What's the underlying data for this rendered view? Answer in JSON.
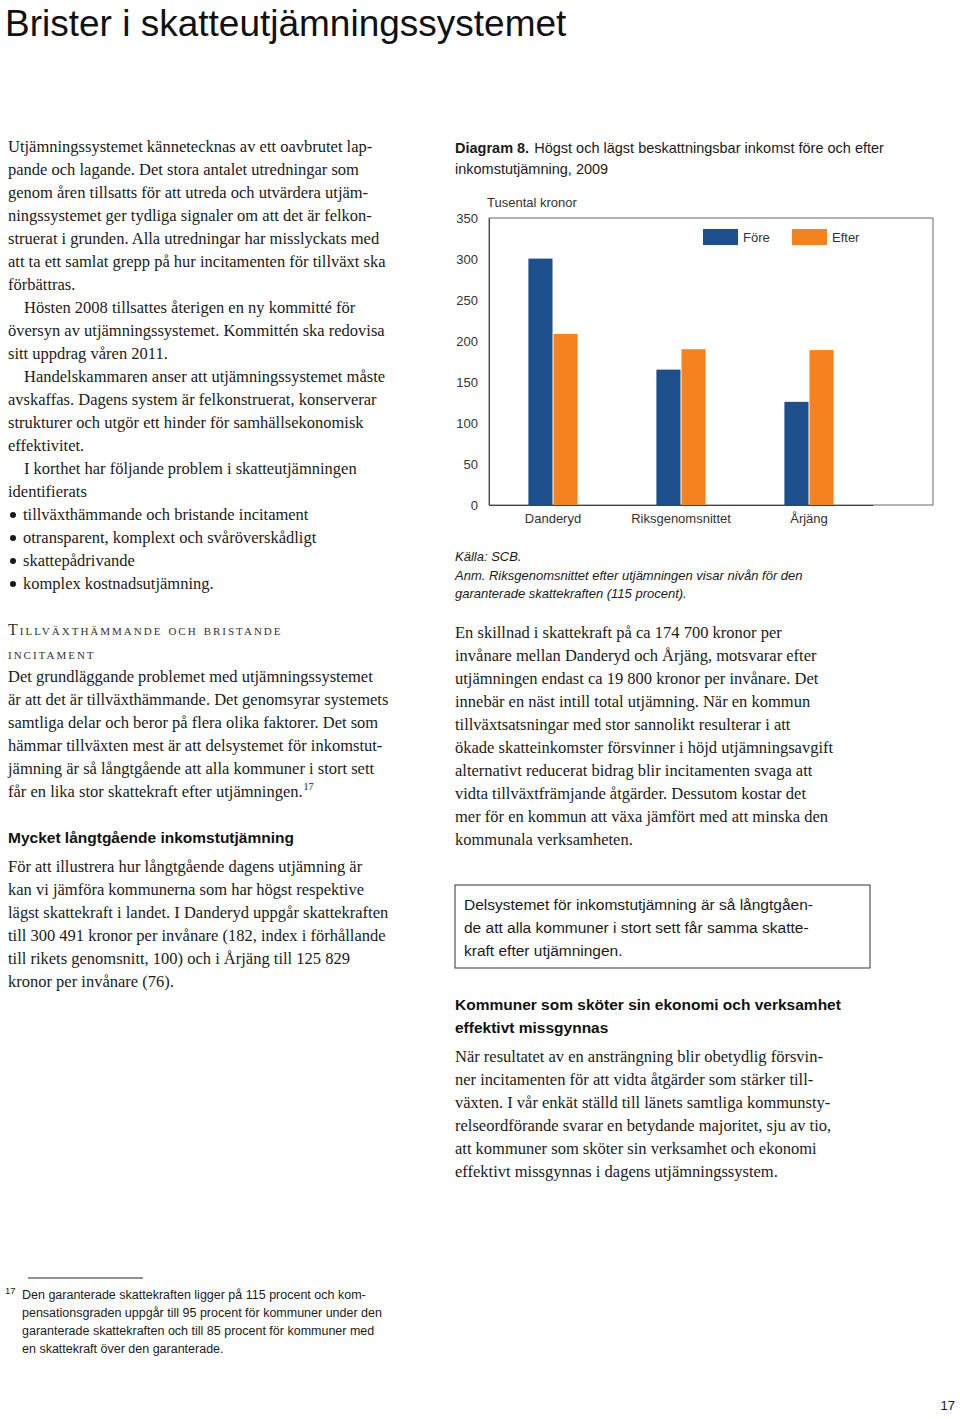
{
  "header": {
    "title": "Brister i skatteutjämningssystemet"
  },
  "left_column": [
    {
      "type": "paragraph",
      "lines": [
        "Utjämningssystemet kännetecknas av ett oavbrutet lap-",
        "pande och lagande. Det stora antalet utredningar som",
        "genom åren tillsatts för att utreda och utvärdera utjäm-",
        "ningssystemet ger tydliga signaler om att det är felkon-",
        "struerat i grunden. Alla utredningar har misslyckats med",
        "att ta ett samlat grepp på hur incitamenten för tillväxt ska",
        "förbättras."
      ]
    },
    {
      "type": "paragraph",
      "lines": [
        "Hösten 2008 tillsattes återigen en ny kommitté för",
        "översyn av utjämningssystemet. Kommittén ska redovisa",
        "sitt uppdrag våren 2011."
      ]
    },
    {
      "type": "paragraph",
      "lines": [
        "Handelskammaren anser att utjämningssystemet måste",
        "avskaffas. Dagens system är felkonstruerat, konserverar",
        "strukturer och utgör ett hinder för samhällsekonomisk",
        "effektivitet."
      ]
    },
    {
      "type": "paragraph",
      "lines": [
        "I korthet har följande problem i skatteutjämningen",
        "identifierats"
      ]
    },
    {
      "type": "list",
      "lines": [
        "tillväxthämmande och bristande incitament",
        "otransparent, komplext och svåröverskådligt",
        "skattepådrivande",
        "komplex kostnadsutjämning."
      ]
    },
    {
      "type": "heading",
      "lines": [
        "Tillväxthämmande och bristande",
        "incitament"
      ]
    },
    {
      "type": "paragraph",
      "footnote_ref": "17",
      "lines": [
        "Det grundläggande problemet med utjämningssystemet",
        "är att det är tillväxthämmande. Det genomsyrar systemets",
        "samtliga delar och beror på flera olika faktorer. Det som",
        "hämmar tillväxten mest är att delsystemet för inkomstut-",
        "jämning är så långtgående att alla kommuner i stort sett",
        "får en lika stor skattekraft efter utjämningen."
      ]
    },
    {
      "type": "subheading",
      "lines": [
        "Mycket långtgående inkomstutjämning"
      ]
    },
    {
      "type": "paragraph",
      "lines": [
        "För att illustrera hur långtgående dagens utjämning är",
        "kan vi jämföra kommunerna som har högst respektive",
        "lägst skattekraft i landet. I Danderyd uppgår skattekraften",
        "till 300 491 kronor per invånare (182, index i förhållande",
        "till rikets genomsnitt, 100) och i Årjäng till 125 829",
        "kronor per invånare (76)."
      ]
    }
  ],
  "right_column": [
    {
      "type": "paragraph",
      "lines": [
        "En skillnad i skattekraft på ca 174 700 kronor per",
        "invånare mellan Danderyd och Årjäng, motsvarar efter",
        "utjämningen endast ca 19 800 kronor per invånare. Det",
        "innebär en näst intill total utjämning. När en kommun",
        "tillväxtsatsningar med stor sannolikt resulterar i att",
        "ökade skatteinkomster försvinner i höjd utjämningsavgift",
        "alternativt reducerat bidrag blir incitamenten svaga att",
        "vidta tillväxtfrämjande åtgärder. Dessutom kostar det",
        "mer för en kommun att växa jämfört med att minska den",
        "kommunala verksamheten."
      ]
    },
    {
      "type": "box",
      "lines": [
        "Delsystemet för inkomstutjämning är så långtgåen-",
        "de att alla kommuner i stort sett får samma skatte-",
        "kraft efter utjämningen."
      ]
    },
    {
      "type": "subheading",
      "lines": [
        "Kommuner som sköter sin ekonomi och verksamhet",
        "effektivt missgynnas"
      ]
    },
    {
      "type": "paragraph",
      "lines": [
        "När resultatet av en ansträngning blir obetydlig försvin-",
        "ner incitamenten för att vidta åtgärder som stärker till-",
        "växten. I vår enkät ställd till länets samtliga kommunsty-",
        "relseordförande svarar en betydande majoritet, sju av tio,",
        "att kommuner som sköter sin verksamhet och ekonomi",
        "effektivt missgynnas i dagens utjämningssystem."
      ]
    }
  ],
  "chart_data": {
    "type": "bar",
    "title": "Diagram 8.",
    "subtitle": "Högst och lägst beskattningsbar inkomst före och efter inkomstutjämning, 2009",
    "y_label": "Tusental kronor",
    "categories": [
      "Danderyd",
      "Riksgenomsnittet",
      "Årjäng"
    ],
    "series": [
      {
        "name": "Före",
        "color": "#1c4f8c",
        "values": [
          300.5,
          165.1,
          125.8
        ]
      },
      {
        "name": "Efter",
        "color": "#f5821f",
        "values": [
          208.7,
          190.0,
          188.9
        ]
      }
    ],
    "ylim": [
      0,
      350
    ],
    "yticks": [
      0,
      50,
      100,
      150,
      200,
      250,
      300,
      350
    ],
    "grid": false,
    "legend": "top-right",
    "source": "Källa: SCB.",
    "notes": [
      "Anm. Riksgenomsnittet efter utjämningen visar nivån för den",
      "garanterade skattekraften (115 procent)."
    ]
  },
  "footnote": {
    "number": "17",
    "lines": [
      "Den garanterade skattekraften ligger på 115 procent och kom-",
      "pensationsgraden uppgår till 95 procent för kommuner under den",
      "garanterade skattekraften och till 85 procent för kommuner med",
      "en skattekraft över den garanterade."
    ]
  },
  "page_number": "17"
}
